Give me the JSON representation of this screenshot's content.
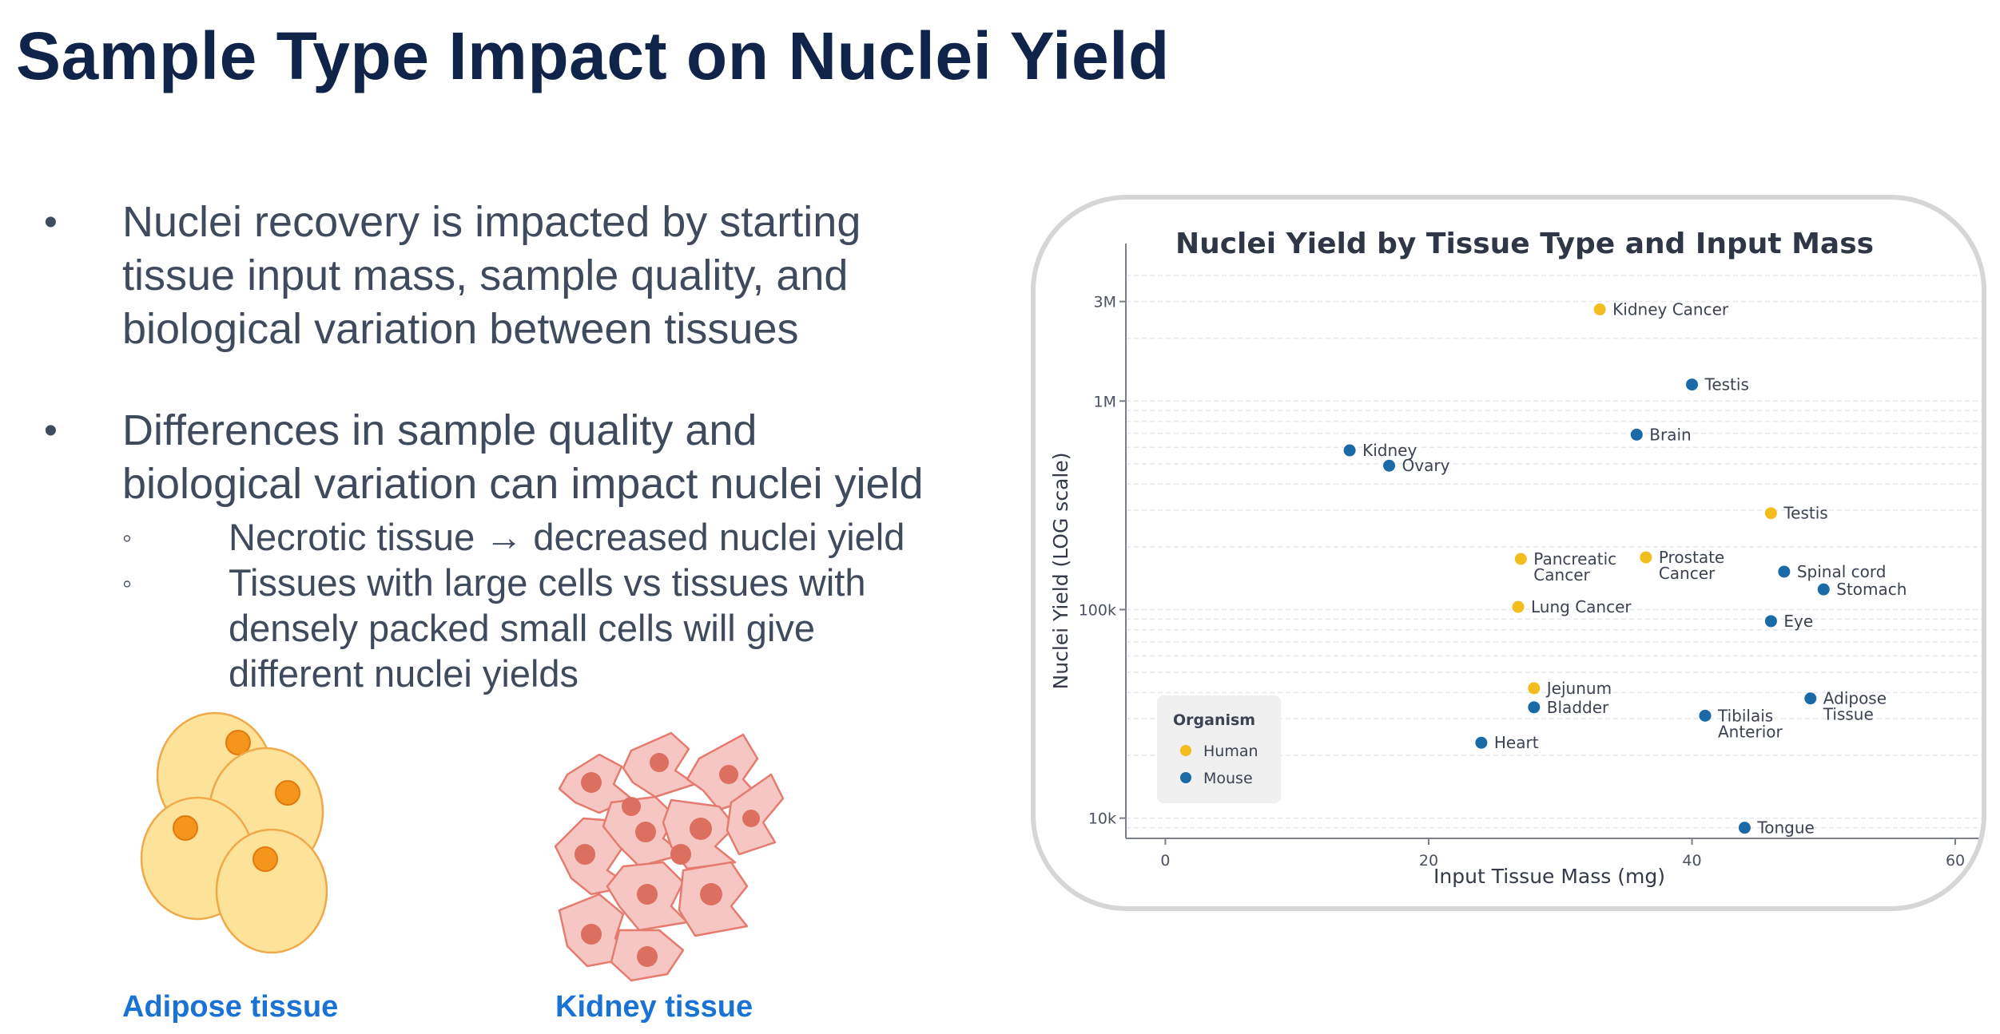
{
  "slide": {
    "title": "Sample Type Impact on Nuclei Yield",
    "bullets": [
      {
        "glyph": "•",
        "text": "Nuclei recovery is impacted by starting\ntissue input mass, sample quality, and\nbiological variation between tissues",
        "subs": []
      },
      {
        "glyph": "•",
        "text": "Differences in sample quality and\nbiological variation can impact nuclei yield",
        "subs": [
          {
            "glyph": "◦",
            "text": "Necrotic tissue → decreased nuclei yield"
          },
          {
            "glyph": "◦",
            "text": "Tissues with large cells vs tissues with\ndensely packed small cells will give\ndifferent nuclei yields"
          }
        ]
      }
    ],
    "images": [
      {
        "label": "Adipose tissue",
        "icon": "adipose-cells-illustration"
      },
      {
        "label": "Kidney tissue",
        "icon": "kidney-cells-illustration"
      }
    ]
  },
  "chart_data": {
    "type": "scatter",
    "title": "Nuclei Yield by Tissue Type and Input Mass",
    "xlabel": "Input Tissue Mass (mg)",
    "ylabel": "Nuclei Yield (LOG scale)",
    "x_ticks": [
      0,
      20,
      40,
      60
    ],
    "x_tick_labels": [
      "0",
      "20",
      "40",
      "60"
    ],
    "y_ticks": [
      10000,
      100000,
      1000000,
      3000000
    ],
    "y_tick_labels": [
      "10k",
      "100k",
      "1M",
      "3M"
    ],
    "xlim": [
      -3,
      62
    ],
    "ylim": [
      8000,
      4000000
    ],
    "y_scale": "log",
    "grid": true,
    "legend": {
      "title": "Organism",
      "placement": "bottom-left"
    },
    "series": [
      {
        "name": "Human",
        "color": "#f3be1d",
        "points": [
          {
            "label": "Kidney Cancer",
            "x": 33,
            "y": 2750000
          },
          {
            "label": "Testis",
            "x": 46,
            "y": 290000
          },
          {
            "label": "Pancreatic Cancer",
            "x": 27,
            "y": 175000
          },
          {
            "label": "Prostate Cancer",
            "x": 36.5,
            "y": 178000
          },
          {
            "label": "Lung Cancer",
            "x": 26.8,
            "y": 103000
          },
          {
            "label": "Jejunum",
            "x": 28,
            "y": 42000
          }
        ]
      },
      {
        "name": "Mouse",
        "color": "#1a6aa8",
        "points": [
          {
            "label": "Testis",
            "x": 40,
            "y": 1200000
          },
          {
            "label": "Brain",
            "x": 35.8,
            "y": 690000
          },
          {
            "label": "Kidney",
            "x": 14,
            "y": 580000
          },
          {
            "label": "Ovary",
            "x": 17,
            "y": 490000
          },
          {
            "label": "Spinal cord",
            "x": 47,
            "y": 152000
          },
          {
            "label": "Stomach",
            "x": 50,
            "y": 125000
          },
          {
            "label": "Eye",
            "x": 46,
            "y": 88000
          },
          {
            "label": "Bladder",
            "x": 28,
            "y": 34000
          },
          {
            "label": "Adipose Tissue",
            "x": 49,
            "y": 37500
          },
          {
            "label": "Tibilais Anterior",
            "x": 41,
            "y": 31000
          },
          {
            "label": "Heart",
            "x": 24,
            "y": 23000
          },
          {
            "label": "Tongue",
            "x": 44,
            "y": 9000
          }
        ]
      }
    ]
  }
}
